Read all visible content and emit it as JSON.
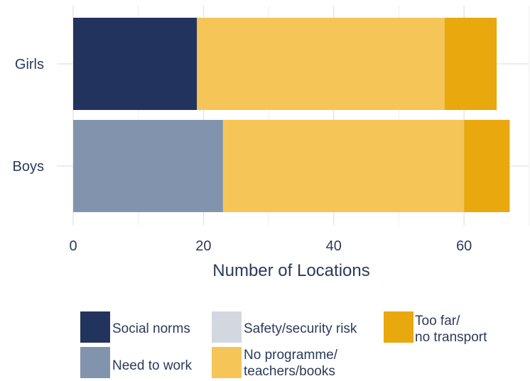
{
  "chart_data": {
    "type": "bar",
    "orientation": "horizontal",
    "stacked": true,
    "categories": [
      "Girls",
      "Boys"
    ],
    "series": [
      {
        "name": "Social norms",
        "values": [
          19,
          0
        ],
        "color": "#22345e"
      },
      {
        "name": "Need to work",
        "values": [
          0,
          23
        ],
        "color": "#8294ad"
      },
      {
        "name": "Safety/security risk",
        "values": [
          0,
          0
        ],
        "color": "#d3d8e0"
      },
      {
        "name": "No programme/ teachers/books",
        "values": [
          38,
          37
        ],
        "color": "#f6c557"
      },
      {
        "name": "Too far/ no transport",
        "values": [
          8,
          7
        ],
        "color": "#e8a80e"
      }
    ],
    "xlabel": "Number of Locations",
    "ylabel": "",
    "xlim": [
      0,
      70
    ],
    "xticks": [
      0,
      20,
      40,
      60
    ],
    "xtick_labels": [
      "0",
      "20",
      "40",
      "60"
    ],
    "grid": true,
    "legend": {
      "position": "bottom",
      "items": [
        {
          "lines": [
            "Social norms"
          ],
          "color": "#22345e"
        },
        {
          "lines": [
            "Need to work"
          ],
          "color": "#8294ad"
        },
        {
          "lines": [
            "Safety/security risk"
          ],
          "color": "#d3d8e0"
        },
        {
          "lines": [
            "No programme/",
            "teachers/books"
          ],
          "color": "#f6c557"
        },
        {
          "lines": [
            "Too far/",
            "no transport"
          ],
          "color": "#e8a80e"
        }
      ]
    }
  }
}
